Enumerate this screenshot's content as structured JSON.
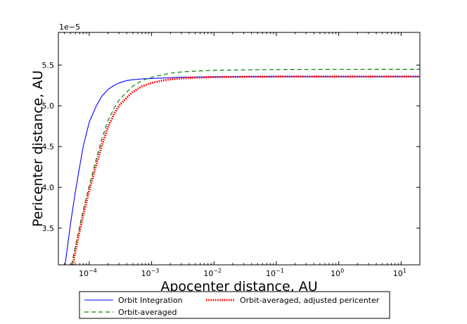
{
  "chart_data": {
    "type": "line",
    "xlabel": "Apocenter distance, AU",
    "ylabel": "Pericenter distance, AU",
    "y_scale_label": "1e−5",
    "x_scale": "log",
    "xlim": [
      3.2e-05,
      20
    ],
    "ylim": [
      3.05,
      5.9
    ],
    "y_ticks": [
      {
        "value": 3.5,
        "label": "3.5"
      },
      {
        "value": 4.0,
        "label": "4.0"
      },
      {
        "value": 4.5,
        "label": "4.5"
      },
      {
        "value": 5.0,
        "label": "5.0"
      },
      {
        "value": 5.5,
        "label": "5.5"
      }
    ],
    "x_ticks": [
      {
        "value": 0.0001,
        "base": "10",
        "exp": "−4"
      },
      {
        "value": 0.001,
        "base": "10",
        "exp": "−3"
      },
      {
        "value": 0.01,
        "base": "10",
        "exp": "−2"
      },
      {
        "value": 0.1,
        "base": "10",
        "exp": "−1"
      },
      {
        "value": 1,
        "base": "10",
        "exp": "0"
      },
      {
        "value": 10,
        "base": "10",
        "exp": "1"
      }
    ],
    "grid": false,
    "legend_position": "below plot",
    "series": [
      {
        "name": "Orbit Integration",
        "color": "#0000ff",
        "style": "solid",
        "x": [
          4.1e-05,
          5e-05,
          6e-05,
          7e-05,
          8e-05,
          0.0001,
          0.00013,
          0.00016,
          0.0002,
          0.00025,
          0.0003,
          0.0004,
          0.0005,
          0.0007,
          0.001,
          0.0015,
          0.002,
          0.003,
          0.005,
          0.01,
          0.03,
          0.1,
          1,
          20
        ],
        "y": [
          3.05,
          3.55,
          3.95,
          4.25,
          4.5,
          4.8,
          5.0,
          5.12,
          5.2,
          5.25,
          5.28,
          5.31,
          5.32,
          5.33,
          5.335,
          5.34,
          5.345,
          5.35,
          5.352,
          5.355,
          5.357,
          5.358,
          5.358,
          5.358
        ]
      },
      {
        "name": "Orbit-averaged",
        "color": "#008000",
        "style": "dashed",
        "x": [
          5.2e-05,
          6e-05,
          7e-05,
          8e-05,
          0.0001,
          0.00013,
          0.00016,
          0.0002,
          0.00025,
          0.0003,
          0.0004,
          0.0005,
          0.0007,
          0.001,
          0.0015,
          0.002,
          0.003,
          0.005,
          0.01,
          0.03,
          0.1,
          1,
          20
        ],
        "y": [
          3.05,
          3.28,
          3.52,
          3.72,
          4.02,
          4.35,
          4.6,
          4.82,
          4.97,
          5.07,
          5.17,
          5.24,
          5.31,
          5.35,
          5.38,
          5.4,
          5.415,
          5.425,
          5.435,
          5.44,
          5.445,
          5.447,
          5.448
        ]
      },
      {
        "name": "Orbit-averaged, adjusted pericenter",
        "color": "#ff0000",
        "style": "dotted",
        "x": [
          5.5e-05,
          6e-05,
          7e-05,
          8e-05,
          0.0001,
          0.00013,
          0.00016,
          0.0002,
          0.00025,
          0.0003,
          0.0004,
          0.0005,
          0.0007,
          0.001,
          0.0015,
          0.002,
          0.003,
          0.005,
          0.01,
          0.03,
          0.1,
          1,
          20
        ],
        "y": [
          3.05,
          3.22,
          3.46,
          3.66,
          3.96,
          4.28,
          4.52,
          4.74,
          4.9,
          5.0,
          5.1,
          5.17,
          5.24,
          5.28,
          5.31,
          5.325,
          5.335,
          5.345,
          5.352,
          5.356,
          5.358,
          5.358,
          5.358
        ]
      }
    ]
  }
}
